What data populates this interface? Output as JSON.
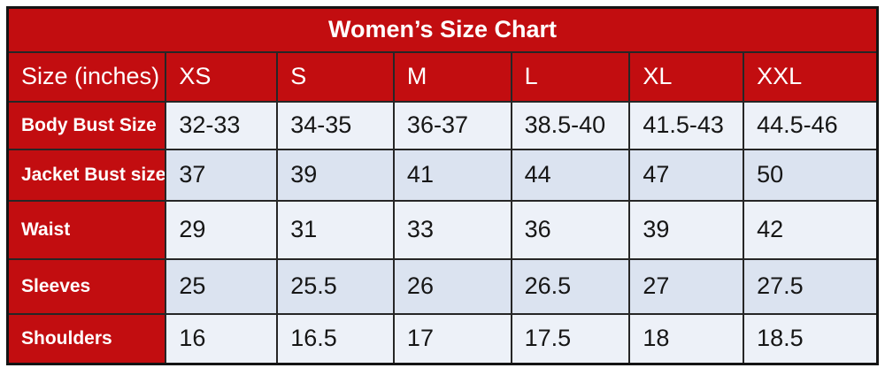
{
  "size_chart": {
    "title": "Women’s Size Chart",
    "columns": [
      "Size (inches)",
      "XS",
      "S",
      "M",
      "L",
      "XL",
      "XXL"
    ],
    "rows": [
      {
        "label": "Body Bust Size",
        "values": [
          "32-33",
          "34-35",
          "36-37",
          "38.5-40",
          "41.5-43",
          "44.5-46"
        ]
      },
      {
        "label": "Jacket Bust size",
        "values": [
          "37",
          "39",
          "41",
          "44",
          "47",
          "50"
        ]
      },
      {
        "label": "Waist",
        "values": [
          "29",
          "31",
          "33",
          "36",
          "39",
          "42"
        ]
      },
      {
        "label": "Sleeves",
        "values": [
          "25",
          "25.5",
          "26",
          "26.5",
          "27",
          "27.5"
        ]
      },
      {
        "label": "Shoulders",
        "values": [
          "16",
          "16.5",
          "17",
          "17.5",
          "18",
          "18.5"
        ]
      }
    ],
    "colors": {
      "header_red": "#c20d10",
      "row_light": "#edf1f8",
      "row_alternate": "#dbe3f0",
      "header_text": "#ffffff",
      "cell_text": "#161616",
      "grid_line": "#262626"
    }
  },
  "chart_data": {
    "type": "table",
    "title": "Women’s Size Chart",
    "units": "inches",
    "columns": [
      "Size (inches)",
      "XS",
      "S",
      "M",
      "L",
      "XL",
      "XXL"
    ],
    "series": [
      {
        "name": "Body Bust Size",
        "values": [
          "32-33",
          "34-35",
          "36-37",
          "38.5-40",
          "41.5-43",
          "44.5-46"
        ]
      },
      {
        "name": "Jacket Bust size",
        "values": [
          37,
          39,
          41,
          44,
          47,
          50
        ]
      },
      {
        "name": "Waist",
        "values": [
          29,
          31,
          33,
          36,
          39,
          42
        ]
      },
      {
        "name": "Sleeves",
        "values": [
          25,
          25.5,
          26,
          26.5,
          27,
          27.5
        ]
      },
      {
        "name": "Shoulders",
        "values": [
          16,
          16.5,
          17,
          17.5,
          18,
          18.5
        ]
      }
    ],
    "layout_hints": {
      "header_style": "dark-red banner with white text",
      "row_banding": "alternating light blue rows",
      "grid": "on"
    }
  }
}
